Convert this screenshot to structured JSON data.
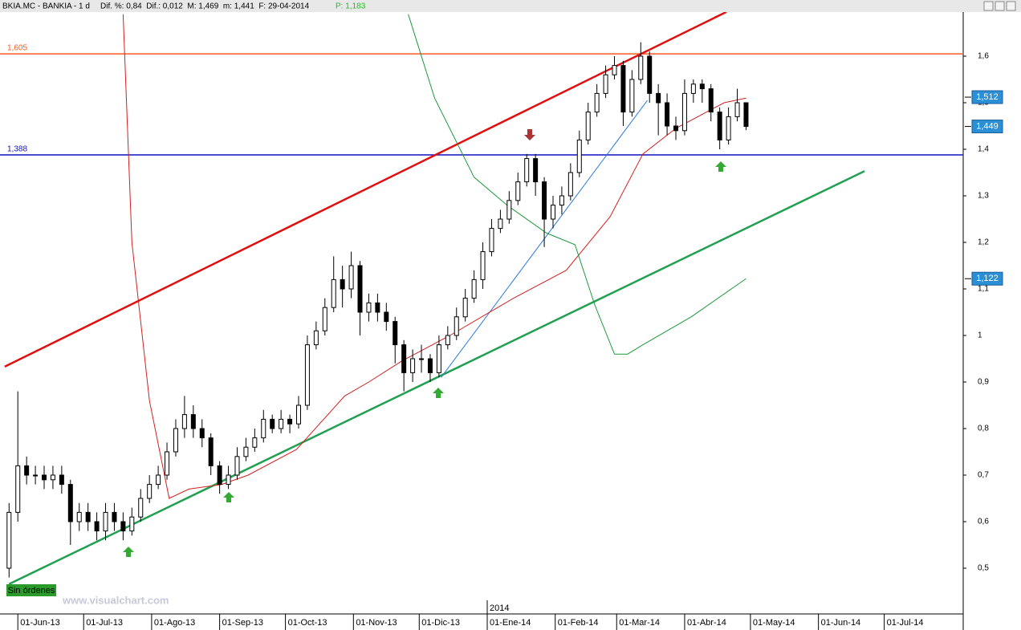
{
  "chart_data": {
    "type": "candlestick",
    "header": {
      "symbol": "BKIA.MC - BANKIA - 1 d",
      "stats": "Dif. %: 0,84  Dif.: 0,012  M: 1,469  m: 1,441  F: 29-04-2014",
      "price": "P: 1,183"
    },
    "status": "Sin órdenes",
    "watermark": "www.visualchart.com",
    "year_marker": {
      "value": 214,
      "label": "2014"
    },
    "xlim": [
      -6.3,
      431
    ],
    "ylim": [
      0.4,
      1.7
    ],
    "xticks": [
      {
        "value": 0,
        "label": "01-Jun-13"
      },
      {
        "value": 30,
        "label": "01-Jul-13"
      },
      {
        "value": 61,
        "label": "01-Ago-13"
      },
      {
        "value": 92,
        "label": "01-Sep-13"
      },
      {
        "value": 122,
        "label": "01-Oct-13"
      },
      {
        "value": 153,
        "label": "01-Nov-13"
      },
      {
        "value": 183,
        "label": "01-Dic-13"
      },
      {
        "value": 214,
        "label": "01-Ene-14"
      },
      {
        "value": 245,
        "label": "01-Feb-14"
      },
      {
        "value": 273,
        "label": "01-Mar-14"
      },
      {
        "value": 304,
        "label": "01-Abr-14"
      },
      {
        "value": 334,
        "label": "01-May-14"
      },
      {
        "value": 365,
        "label": "01-Jun-14"
      },
      {
        "value": 395,
        "label": "01-Jul-14"
      }
    ],
    "yticks": [
      {
        "value": 0.5,
        "label": "0,5"
      },
      {
        "value": 0.6,
        "label": "0,6"
      },
      {
        "value": 0.7,
        "label": "0,7"
      },
      {
        "value": 0.8,
        "label": "0,8"
      },
      {
        "value": 0.9,
        "label": "0,9"
      },
      1,
      {
        "value": 1.1,
        "label": "1,1"
      },
      {
        "value": 1.2,
        "label": "1,2"
      },
      {
        "value": 1.3,
        "label": "1,3"
      },
      {
        "value": 1.4,
        "label": "1,4"
      },
      {
        "value": 1.5,
        "label": "1,5"
      },
      {
        "value": 1.6,
        "label": "1,6"
      }
    ],
    "candles": {
      "up_color": "#ffffff",
      "down_color": "#000000",
      "x": [
        -4,
        0,
        4,
        8,
        12,
        16,
        20,
        24,
        28,
        32,
        36,
        40,
        44,
        48,
        52,
        56,
        60,
        64,
        68,
        72,
        76,
        80,
        84,
        88,
        92,
        96,
        100,
        104,
        108,
        112,
        116,
        120,
        124,
        128,
        132,
        136,
        140,
        144,
        148,
        152,
        156,
        160,
        164,
        168,
        172,
        176,
        180,
        184,
        188,
        192,
        196,
        200,
        204,
        208,
        212,
        216,
        220,
        224,
        228,
        232,
        236,
        240,
        244,
        248,
        252,
        256,
        260,
        264,
        268,
        272,
        276,
        280,
        284,
        288,
        292,
        296,
        300,
        304,
        308,
        312,
        316,
        320,
        324,
        328,
        332
      ],
      "open": [
        0.5,
        0.62,
        0.72,
        0.7,
        0.7,
        0.69,
        0.7,
        0.68,
        0.6,
        0.62,
        0.6,
        0.58,
        0.62,
        0.6,
        0.58,
        0.61,
        0.65,
        0.68,
        0.7,
        0.75,
        0.8,
        0.83,
        0.8,
        0.78,
        0.72,
        0.68,
        0.7,
        0.74,
        0.76,
        0.78,
        0.82,
        0.8,
        0.82,
        0.81,
        0.85,
        0.98,
        1.01,
        1.06,
        1.12,
        1.1,
        1.15,
        1.05,
        1.07,
        1.05,
        1.03,
        0.98,
        0.92,
        0.95,
        0.95,
        0.92,
        0.98,
        1.0,
        1.04,
        1.08,
        1.12,
        1.18,
        1.23,
        1.25,
        1.29,
        1.33,
        1.38,
        1.33,
        1.25,
        1.28,
        1.3,
        1.35,
        1.42,
        1.48,
        1.52,
        1.56,
        1.58,
        1.48,
        1.55,
        1.6,
        1.52,
        1.5,
        1.45,
        1.44,
        1.52,
        1.54,
        1.53,
        1.48,
        1.42,
        1.47,
        1.5
      ],
      "high": [
        0.64,
        0.88,
        0.74,
        0.72,
        0.72,
        0.72,
        0.72,
        0.69,
        0.64,
        0.64,
        0.62,
        0.64,
        0.64,
        0.62,
        0.63,
        0.67,
        0.7,
        0.72,
        0.77,
        0.82,
        0.87,
        0.85,
        0.82,
        0.79,
        0.73,
        0.72,
        0.76,
        0.78,
        0.8,
        0.84,
        0.83,
        0.84,
        0.83,
        0.87,
        1.0,
        1.03,
        1.08,
        1.17,
        1.15,
        1.18,
        1.16,
        1.09,
        1.09,
        1.07,
        1.04,
        0.99,
        0.97,
        0.98,
        0.96,
        1.0,
        1.02,
        1.06,
        1.1,
        1.14,
        1.2,
        1.25,
        1.27,
        1.31,
        1.35,
        1.39,
        1.39,
        1.34,
        1.3,
        1.32,
        1.37,
        1.44,
        1.5,
        1.54,
        1.58,
        1.6,
        1.59,
        1.57,
        1.63,
        1.61,
        1.54,
        1.52,
        1.47,
        1.55,
        1.55,
        1.55,
        1.54,
        1.49,
        1.49,
        1.53,
        1.469
      ],
      "low": [
        0.48,
        0.6,
        0.68,
        0.68,
        0.67,
        0.67,
        0.66,
        0.55,
        0.58,
        0.58,
        0.56,
        0.56,
        0.58,
        0.56,
        0.57,
        0.6,
        0.64,
        0.67,
        0.69,
        0.74,
        0.78,
        0.78,
        0.76,
        0.7,
        0.66,
        0.67,
        0.69,
        0.73,
        0.75,
        0.77,
        0.79,
        0.79,
        0.79,
        0.8,
        0.84,
        0.97,
        1.0,
        1.05,
        1.06,
        1.08,
        1.0,
        1.03,
        1.03,
        1.01,
        0.94,
        0.88,
        0.9,
        0.92,
        0.9,
        0.91,
        0.97,
        0.99,
        1.03,
        1.07,
        1.1,
        1.17,
        1.22,
        1.24,
        1.28,
        1.32,
        1.3,
        1.19,
        1.23,
        1.26,
        1.29,
        1.34,
        1.41,
        1.47,
        1.51,
        1.55,
        1.45,
        1.47,
        1.54,
        1.5,
        1.43,
        1.43,
        1.42,
        1.43,
        1.5,
        1.5,
        1.46,
        1.4,
        1.41,
        1.46,
        1.441
      ],
      "close": [
        0.62,
        0.72,
        0.7,
        0.7,
        0.69,
        0.7,
        0.68,
        0.6,
        0.62,
        0.6,
        0.58,
        0.62,
        0.6,
        0.58,
        0.61,
        0.65,
        0.68,
        0.7,
        0.75,
        0.8,
        0.83,
        0.8,
        0.78,
        0.72,
        0.68,
        0.7,
        0.74,
        0.76,
        0.78,
        0.82,
        0.8,
        0.82,
        0.81,
        0.85,
        0.98,
        1.01,
        1.06,
        1.12,
        1.1,
        1.15,
        1.05,
        1.07,
        1.05,
        1.03,
        0.98,
        0.92,
        0.95,
        0.95,
        0.92,
        0.98,
        1.0,
        1.04,
        1.08,
        1.12,
        1.18,
        1.23,
        1.25,
        1.29,
        1.33,
        1.38,
        1.33,
        1.25,
        1.28,
        1.3,
        1.35,
        1.42,
        1.48,
        1.52,
        1.56,
        1.58,
        1.48,
        1.55,
        1.6,
        1.52,
        1.5,
        1.45,
        1.44,
        1.52,
        1.54,
        1.53,
        1.48,
        1.42,
        1.47,
        1.5,
        1.449
      ]
    },
    "series": [
      {
        "color": "#d42020",
        "width": 1,
        "x": [
          48,
          52,
          60,
          69,
          78,
          93,
          105,
          127,
          149,
          160,
          175,
          197,
          226,
          250,
          270,
          285,
          300,
          322,
          332
        ],
        "values": [
          1.69,
          1.2,
          0.86,
          0.65,
          0.67,
          0.68,
          0.7,
          0.755,
          0.87,
          0.9,
          0.945,
          1.0,
          1.08,
          1.14,
          1.255,
          1.39,
          1.445,
          1.5,
          1.51
        ]
      },
      {
        "color": "#1e9a3c",
        "width": 1,
        "x": [
          178,
          190,
          208,
          223,
          241,
          254,
          263,
          272,
          278,
          285,
          307,
          332
        ],
        "values": [
          1.69,
          1.51,
          1.34,
          1.28,
          1.22,
          1.195,
          1.066,
          0.96,
          0.96,
          0.98,
          1.04,
          1.122
        ]
      }
    ],
    "trendlines": [
      {
        "color": "#e01010",
        "width": 2.5,
        "x": [
          -6,
          323
        ],
        "values": [
          0.933,
          1.695
        ]
      },
      {
        "color": "#20a050",
        "width": 2.5,
        "x": [
          -4,
          386
        ],
        "values": [
          0.466,
          1.353
        ]
      },
      {
        "color": "#2a7ae0",
        "width": 1,
        "x": [
          193,
          287
        ],
        "values": [
          0.91,
          1.505
        ]
      }
    ],
    "hlines": [
      {
        "value": 1.605,
        "label": "1,605",
        "color": "#ff5a1e"
      },
      {
        "value": 1.388,
        "label": "1,388",
        "color": "#1010c0"
      }
    ],
    "price_labels": [
      {
        "value": 1.512,
        "label": "1,512"
      },
      {
        "value": 1.449,
        "label": "1,449"
      },
      {
        "value": 1.122,
        "label": "1,122"
      }
    ]
  }
}
